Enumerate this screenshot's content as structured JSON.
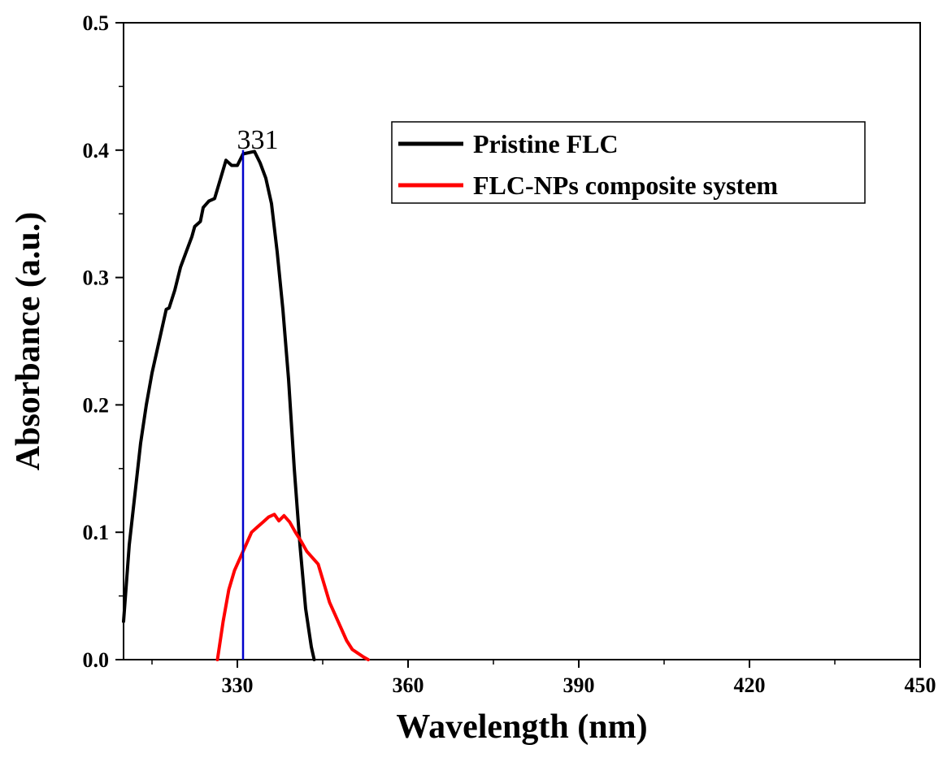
{
  "chart_data": {
    "type": "line",
    "xlabel": "Wavelength (nm)",
    "ylabel": "Absorbance (a.u.)",
    "xlim": [
      310,
      450
    ],
    "ylim": [
      0,
      0.5
    ],
    "x_ticks": [
      "330",
      "360",
      "390",
      "420",
      "450"
    ],
    "y_ticks": [
      "0.0",
      "0.1",
      "0.2",
      "0.3",
      "0.4",
      "0.5"
    ],
    "legend_position": "top-right",
    "series": [
      {
        "name": "Pristine FLC",
        "color": "#000000",
        "points": [
          [
            310,
            0.03
          ],
          [
            311,
            0.09
          ],
          [
            312,
            0.13
          ],
          [
            313,
            0.17
          ],
          [
            314,
            0.2
          ],
          [
            315,
            0.225
          ],
          [
            316,
            0.245
          ],
          [
            317,
            0.265
          ],
          [
            317.5,
            0.275
          ],
          [
            318,
            0.276
          ],
          [
            319,
            0.29
          ],
          [
            320,
            0.308
          ],
          [
            321,
            0.32
          ],
          [
            322,
            0.332
          ],
          [
            322.5,
            0.34
          ],
          [
            323.5,
            0.344
          ],
          [
            324,
            0.355
          ],
          [
            325,
            0.36
          ],
          [
            326,
            0.362
          ],
          [
            327,
            0.377
          ],
          [
            328,
            0.392
          ],
          [
            329,
            0.388
          ],
          [
            330,
            0.388
          ],
          [
            331,
            0.397
          ],
          [
            332,
            0.398
          ],
          [
            333,
            0.399
          ],
          [
            334,
            0.39
          ],
          [
            335,
            0.378
          ],
          [
            336,
            0.358
          ],
          [
            337,
            0.32
          ],
          [
            338,
            0.275
          ],
          [
            339,
            0.22
          ],
          [
            340,
            0.15
          ],
          [
            341,
            0.09
          ],
          [
            342,
            0.04
          ],
          [
            343,
            0.01
          ],
          [
            343.5,
            0.0
          ]
        ]
      },
      {
        "name": "FLC-NPs composite system",
        "color": "#ff0000",
        "points": [
          [
            326.5,
            0.0
          ],
          [
            327.5,
            0.03
          ],
          [
            328.5,
            0.055
          ],
          [
            329.5,
            0.07
          ],
          [
            330.5,
            0.08
          ],
          [
            331.5,
            0.09
          ],
          [
            332.5,
            0.1
          ],
          [
            333.5,
            0.104
          ],
          [
            334.5,
            0.108
          ],
          [
            335.5,
            0.112
          ],
          [
            336.5,
            0.114
          ],
          [
            337.3,
            0.109
          ],
          [
            338.2,
            0.113
          ],
          [
            339.2,
            0.108
          ],
          [
            340.2,
            0.1
          ],
          [
            341.2,
            0.093
          ],
          [
            342.2,
            0.085
          ],
          [
            343.2,
            0.08
          ],
          [
            344.2,
            0.075
          ],
          [
            345.2,
            0.06
          ],
          [
            346.2,
            0.045
          ],
          [
            347.2,
            0.035
          ],
          [
            348.2,
            0.025
          ],
          [
            349.2,
            0.015
          ],
          [
            350.2,
            0.008
          ],
          [
            351.2,
            0.005
          ],
          [
            352.2,
            0.002
          ],
          [
            353,
            0.0
          ]
        ]
      }
    ],
    "annotations": [
      {
        "label": "331",
        "x": 331,
        "y": 0.4,
        "color": "#0000cc"
      }
    ]
  }
}
